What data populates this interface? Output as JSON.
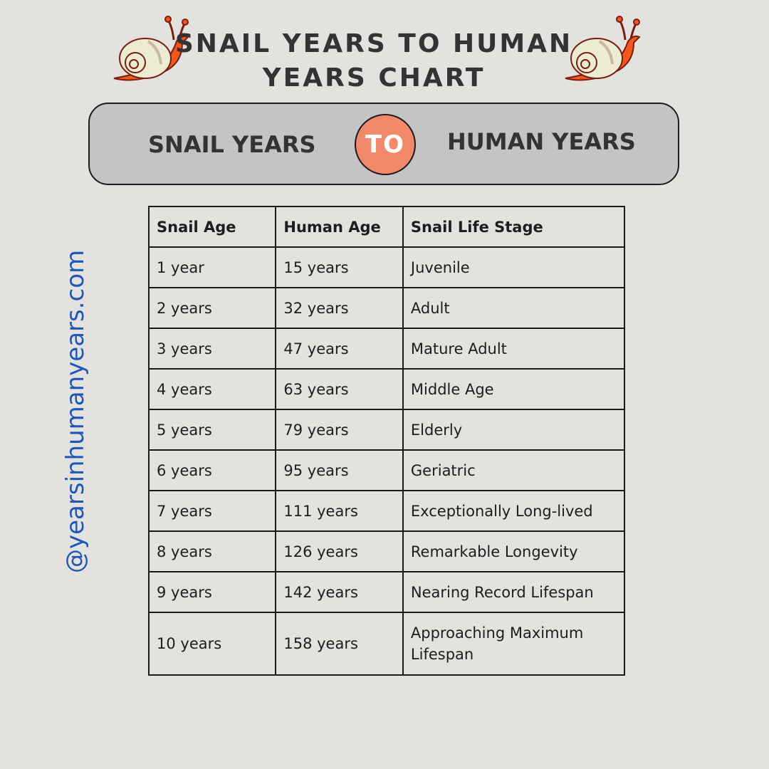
{
  "title": {
    "line1": "SNAIL YEARS TO HUMAN",
    "line2": "YEARS CHART"
  },
  "banner": {
    "left": "SNAIL YEARS",
    "middle": "TO",
    "right": "HUMAN YEARS"
  },
  "watermark": "@yearsinhumanyears.com",
  "icons": {
    "left": "snail-icon",
    "right": "snail-icon"
  },
  "colors": {
    "background": "#e3e2df",
    "banner": "#c4c4c4",
    "accent": "#f2896a",
    "watermark": "#1f57b8",
    "snail_body": "#f2571d"
  },
  "table": {
    "headers": [
      "Snail Age",
      "Human Age",
      "Snail Life Stage"
    ],
    "rows": [
      [
        "1 year",
        "15 years",
        "Juvenile"
      ],
      [
        "2 years",
        "32 years",
        "Adult"
      ],
      [
        "3 years",
        "47 years",
        "Mature Adult"
      ],
      [
        "4 years",
        "63 years",
        "Middle Age"
      ],
      [
        "5 years",
        "79 years",
        "Elderly"
      ],
      [
        "6 years",
        "95 years",
        "Geriatric"
      ],
      [
        "7 years",
        "111 years",
        "Exceptionally Long-lived"
      ],
      [
        "8 years",
        "126 years",
        "Remarkable Longevity"
      ],
      [
        "9 years",
        "142 years",
        "Nearing Record Lifespan"
      ],
      [
        "10 years",
        "158 years",
        "Approaching Maximum Lifespan"
      ]
    ]
  }
}
